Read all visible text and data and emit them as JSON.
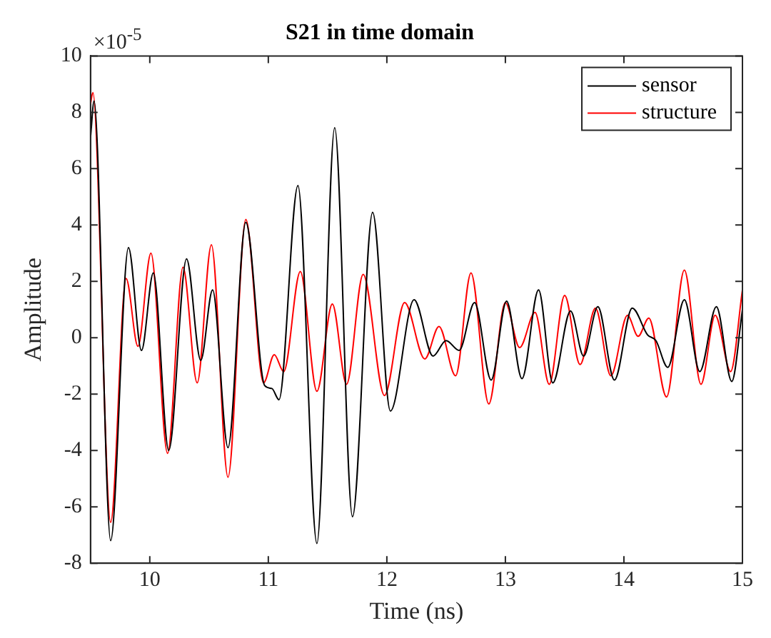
{
  "chart_data": {
    "type": "line",
    "title": "S21 in time domain",
    "xlabel": "Time (ns)",
    "ylabel": "Amplitude",
    "annotations": [
      "×10$^{-5}$"
    ],
    "xlim": [
      9.5,
      15
    ],
    "xticks": [
      10,
      11,
      12,
      13,
      14,
      15
    ],
    "ylim": [
      -8,
      10
    ],
    "yticks": [
      -8,
      -6,
      -4,
      -2,
      0,
      2,
      4,
      6,
      8,
      10
    ],
    "grid": false,
    "legend": "top right",
    "line_style": "solid",
    "marker": "none",
    "series": [
      {
        "name": "sensor",
        "color": "#000000",
        "x": [
          9.5,
          9.53,
          9.67,
          9.82,
          9.93,
          10.03,
          10.16,
          10.31,
          10.43,
          10.53,
          10.66,
          10.81,
          10.97,
          11.03,
          11.09,
          11.25,
          11.41,
          11.56,
          11.71,
          11.88,
          12.03,
          12.23,
          12.39,
          12.5,
          12.61,
          12.74,
          12.88,
          13.01,
          13.14,
          13.28,
          13.4,
          13.55,
          13.66,
          13.78,
          13.92,
          14.07,
          14.2,
          14.27,
          14.37,
          14.51,
          14.64,
          14.78,
          14.91,
          15
        ],
        "values": [
          7.1,
          8.4,
          -7.2,
          3.2,
          -0.45,
          2.3,
          -4.0,
          2.8,
          -0.8,
          1.7,
          -3.9,
          4.1,
          -1.7,
          -1.8,
          -2.2,
          5.4,
          -7.3,
          7.45,
          -6.35,
          4.45,
          -2.6,
          1.35,
          -0.65,
          -0.1,
          -0.45,
          1.25,
          -1.5,
          1.3,
          -1.45,
          1.7,
          -1.6,
          0.95,
          -0.65,
          1.1,
          -1.5,
          1.05,
          0.1,
          -0.1,
          -1.05,
          1.35,
          -1.2,
          1.1,
          -1.55,
          1.0
        ]
      },
      {
        "name": "structure",
        "color": "#ff0000",
        "x": [
          9.5,
          9.52,
          9.67,
          9.8,
          9.9,
          10.01,
          10.15,
          10.28,
          10.4,
          10.52,
          10.66,
          10.81,
          10.96,
          11.05,
          11.13,
          11.27,
          11.41,
          11.54,
          11.66,
          11.8,
          11.98,
          12.15,
          12.32,
          12.44,
          12.58,
          12.71,
          12.86,
          13.0,
          13.12,
          13.25,
          13.37,
          13.5,
          13.63,
          13.76,
          13.89,
          14.03,
          14.12,
          14.21,
          14.36,
          14.51,
          14.65,
          14.77,
          14.9,
          15
        ],
        "values": [
          8.3,
          8.7,
          -6.55,
          2.1,
          -0.3,
          3.0,
          -4.1,
          2.5,
          -1.6,
          3.3,
          -4.95,
          4.2,
          -1.6,
          -0.6,
          -1.2,
          2.35,
          -1.9,
          1.2,
          -1.65,
          2.25,
          -2.05,
          1.25,
          -0.75,
          0.4,
          -1.35,
          2.3,
          -2.35,
          1.25,
          -0.35,
          0.9,
          -1.65,
          1.5,
          -0.95,
          1.05,
          -1.35,
          0.8,
          0.05,
          0.7,
          -2.1,
          2.4,
          -1.65,
          0.8,
          -1.2,
          1.7
        ]
      }
    ]
  }
}
